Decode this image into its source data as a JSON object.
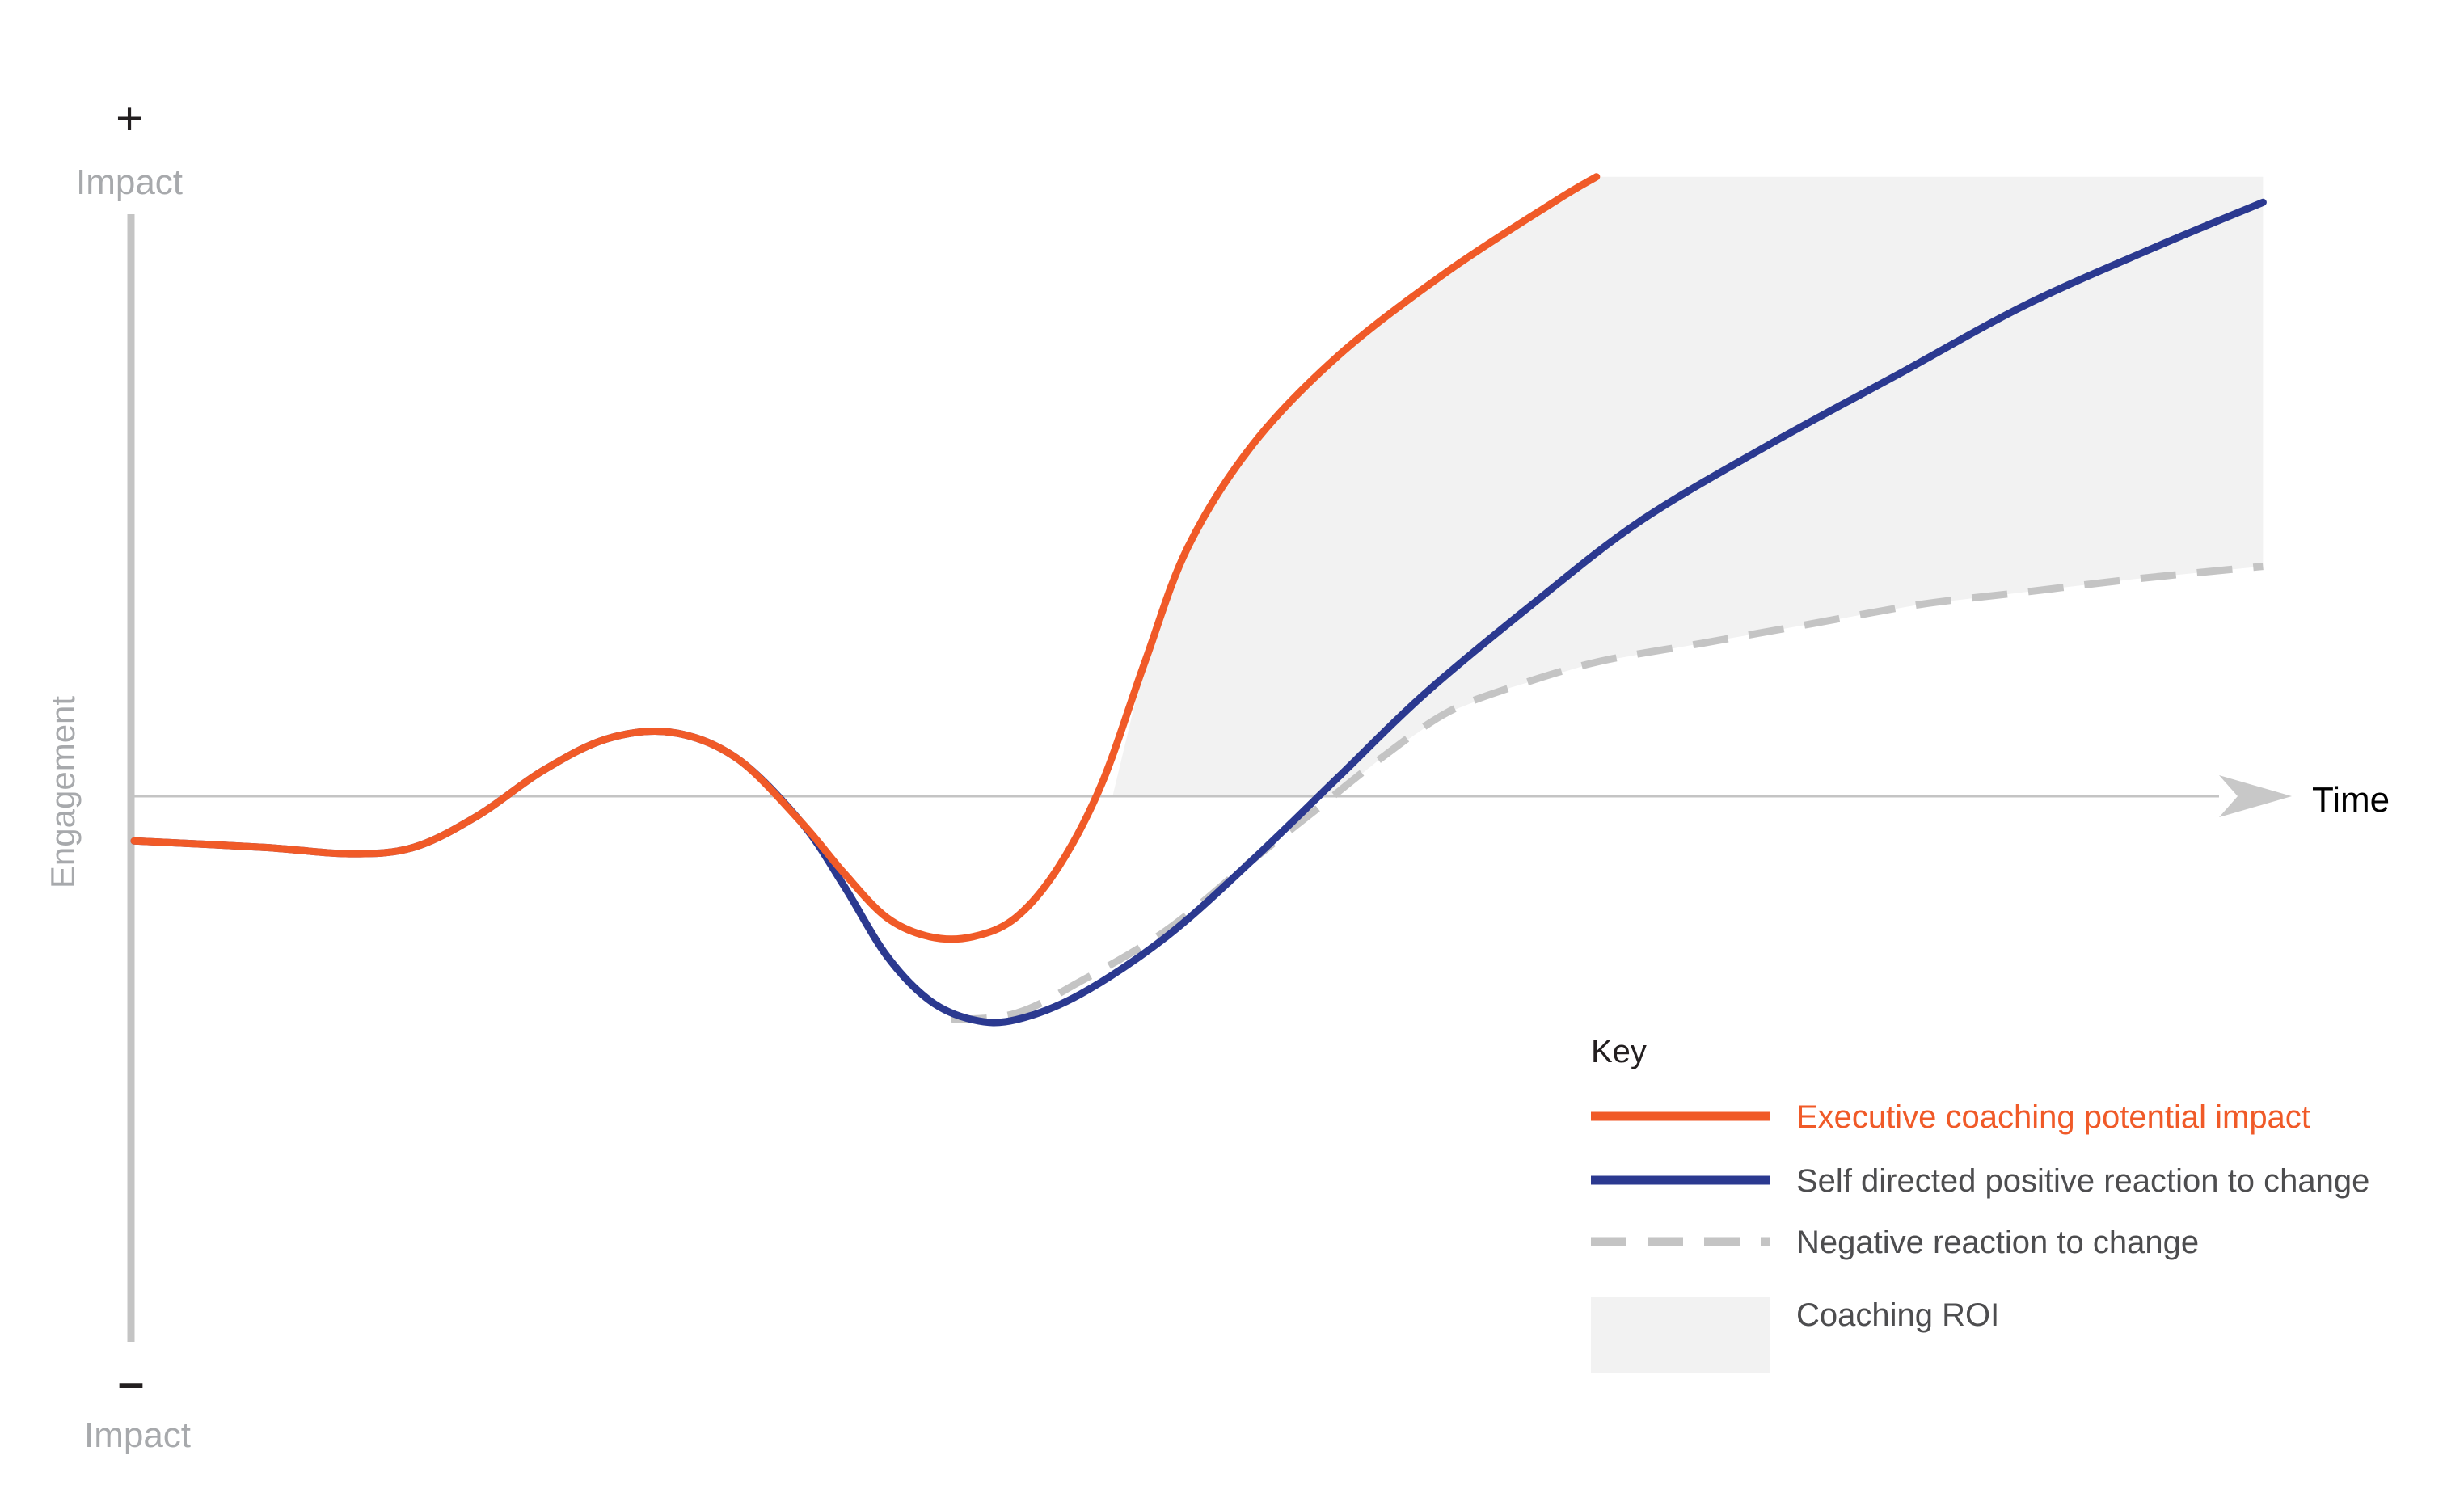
{
  "chart_data": {
    "type": "line",
    "xlabel": "Time",
    "ylabel": "Engagement",
    "y_top_marker": "+",
    "y_top_label": "Impact",
    "y_bottom_marker": "–",
    "y_bottom_label": "Impact",
    "grid": false,
    "legend_position": "bottom-right",
    "legend_title": "Key",
    "xlim": [
      0,
      100
    ],
    "ylim": [
      -100,
      100
    ],
    "series": [
      {
        "name": "Executive coaching potential impact",
        "color": "#f05a28",
        "style": "solid",
        "points": [
          [
            0,
            -7
          ],
          [
            6,
            -8
          ],
          [
            10,
            -9
          ],
          [
            13,
            -8
          ],
          [
            16,
            -3
          ],
          [
            19,
            4
          ],
          [
            22,
            9
          ],
          [
            25,
            10
          ],
          [
            28,
            6
          ],
          [
            31,
            -4
          ],
          [
            33,
            -12
          ],
          [
            35,
            -19
          ],
          [
            37,
            -22
          ],
          [
            39,
            -22
          ],
          [
            41,
            -19
          ],
          [
            43,
            -11
          ],
          [
            45,
            2
          ],
          [
            47,
            21
          ],
          [
            49,
            39
          ],
          [
            52,
            55
          ],
          [
            56,
            69
          ],
          [
            61,
            82
          ],
          [
            66,
            93
          ],
          [
            68,
            97
          ]
        ]
      },
      {
        "name": "Self directed positive reaction to change",
        "color": "#2b3990",
        "style": "solid",
        "points": [
          [
            0,
            -7
          ],
          [
            6,
            -8
          ],
          [
            10,
            -9
          ],
          [
            13,
            -8
          ],
          [
            16,
            -3
          ],
          [
            19,
            4
          ],
          [
            22,
            9
          ],
          [
            25,
            10
          ],
          [
            28,
            6
          ],
          [
            31,
            -4
          ],
          [
            33,
            -14
          ],
          [
            35,
            -25
          ],
          [
            37,
            -32
          ],
          [
            39,
            -35
          ],
          [
            41,
            -35
          ],
          [
            44,
            -31
          ],
          [
            48,
            -22
          ],
          [
            52,
            -10
          ],
          [
            56,
            3
          ],
          [
            60,
            16
          ],
          [
            65,
            30
          ],
          [
            70,
            43
          ],
          [
            76,
            55
          ],
          [
            82,
            66
          ],
          [
            88,
            77
          ],
          [
            94,
            86
          ],
          [
            99,
            93
          ]
        ]
      },
      {
        "name": "Negative reaction to change",
        "color": "#c4c4c4",
        "style": "dashed",
        "points": [
          [
            38,
            -35
          ],
          [
            41,
            -34
          ],
          [
            44,
            -29
          ],
          [
            48,
            -21
          ],
          [
            52,
            -10
          ],
          [
            55,
            -2
          ],
          [
            58,
            6
          ],
          [
            61,
            13
          ],
          [
            64,
            17
          ],
          [
            68,
            21
          ],
          [
            73,
            24
          ],
          [
            78,
            27
          ],
          [
            83,
            30
          ],
          [
            88,
            32
          ],
          [
            93,
            34
          ],
          [
            99,
            36
          ]
        ]
      }
    ],
    "area": {
      "name": "Coaching ROI",
      "color": "#f2f2f2"
    }
  }
}
